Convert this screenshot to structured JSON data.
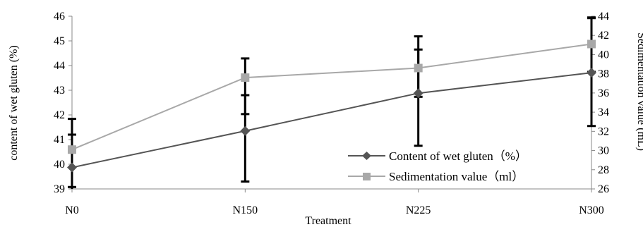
{
  "chart_data": {
    "type": "line",
    "categories": [
      "N0",
      "N150",
      "N225",
      "N300"
    ],
    "xlabel": "Treatment",
    "ylabel_left": "content of wet gluten (%)",
    "ylabel_right": "Sedimentation value (mL)",
    "ylim_left": [
      39,
      46
    ],
    "ylim_right": [
      26,
      44
    ],
    "yticks_left": [
      39,
      40,
      41,
      42,
      43,
      44,
      45,
      46
    ],
    "yticks_right": [
      26,
      28,
      30,
      32,
      34,
      36,
      38,
      40,
      42,
      44
    ],
    "grid": false,
    "legend_position": "bottom-right",
    "series": [
      {
        "name": "Content of wet gluten（%）",
        "axis": "left",
        "marker": "diamond",
        "color": "#555555",
        "values": [
          39.87,
          41.35,
          42.88,
          43.71
        ],
        "error_low": [
          38.95,
          39.3,
          40.75,
          41.55
        ],
        "error_high": [
          41.2,
          42.8,
          44.65,
          45.95
        ]
      },
      {
        "name": "Sedimentation value（ml）",
        "axis": "right",
        "marker": "square",
        "color": "#a8a8a8",
        "values": [
          30.1,
          37.6,
          38.6,
          41.1
        ],
        "error_low": [
          26.2,
          33.8,
          35.6,
          38.2
        ],
        "error_high": [
          33.3,
          39.6,
          41.9,
          43.8
        ]
      }
    ]
  }
}
